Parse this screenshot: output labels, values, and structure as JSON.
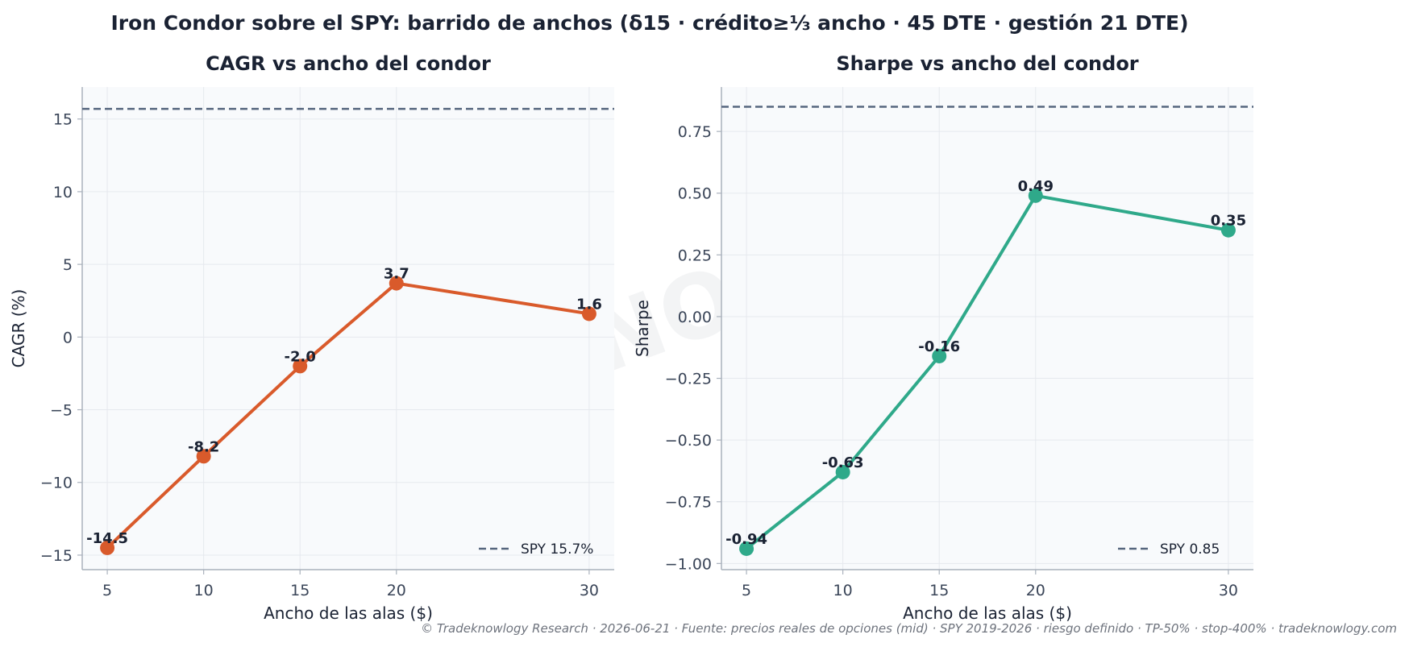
{
  "figure": {
    "suptitle": "Iron Condor sobre el SPY: barrido de anchos (δ15 · crédito≥⅓ ancho · 45 DTE · gestión 21 DTE)",
    "watermark": "TRADEKNOWLOGY",
    "footer": "© Tradeknowlogy Research   ·   2026-06-21   ·   Fuente: precios reales de opciones (mid) · SPY 2019-2026 · riesgo definido · TP-50% · stop-400%   ·   tradeknowlogy.com"
  },
  "chart_data": [
    {
      "type": "line",
      "title": "CAGR vs ancho del condor",
      "xlabel": "Ancho de las alas ($)",
      "ylabel": "CAGR (%)",
      "x": [
        5,
        10,
        15,
        20,
        30
      ],
      "xticks": [
        "5",
        "10",
        "15",
        "20",
        "30"
      ],
      "xlim": [
        3.7,
        31.3
      ],
      "ylim": [
        -16.0,
        17.2
      ],
      "yticks": [
        -15,
        -10,
        -5,
        0,
        5,
        10,
        15
      ],
      "ytick_labels": [
        "−15",
        "−10",
        "−5",
        "0",
        "5",
        "10",
        "15"
      ],
      "series": [
        {
          "values": [
            -14.5,
            -8.2,
            -2.0,
            3.7,
            1.6
          ],
          "labels": [
            "-14.5",
            "-8.2",
            "-2.0",
            "3.7",
            "1.6"
          ],
          "color": "#d95a2b"
        }
      ],
      "reference_line": {
        "name": "SPY 15.7%",
        "value": 15.7,
        "color": "#56667e",
        "style": "dashed"
      },
      "legend": "lower-right",
      "grid": true
    },
    {
      "type": "line",
      "title": "Sharpe vs ancho del condor",
      "xlabel": "Ancho de las alas ($)",
      "ylabel": "Sharpe",
      "x": [
        5,
        10,
        15,
        20,
        30
      ],
      "xticks": [
        "5",
        "10",
        "15",
        "20",
        "30"
      ],
      "xlim": [
        3.7,
        31.3
      ],
      "ylim": [
        -1.025,
        0.93
      ],
      "yticks": [
        -1.0,
        -0.75,
        -0.5,
        -0.25,
        0.0,
        0.25,
        0.5,
        0.75
      ],
      "ytick_labels": [
        "−1.00",
        "−0.75",
        "−0.50",
        "−0.25",
        "0.00",
        "0.25",
        "0.50",
        "0.75"
      ],
      "series": [
        {
          "values": [
            -0.94,
            -0.63,
            -0.16,
            0.49,
            0.35
          ],
          "labels": [
            "-0.94",
            "-0.63",
            "-0.16",
            "0.49",
            "0.35"
          ],
          "color": "#2fa98a"
        }
      ],
      "reference_line": {
        "name": "SPY 0.85",
        "value": 0.85,
        "color": "#56667e",
        "style": "dashed"
      },
      "legend": "lower-right",
      "grid": true
    }
  ]
}
